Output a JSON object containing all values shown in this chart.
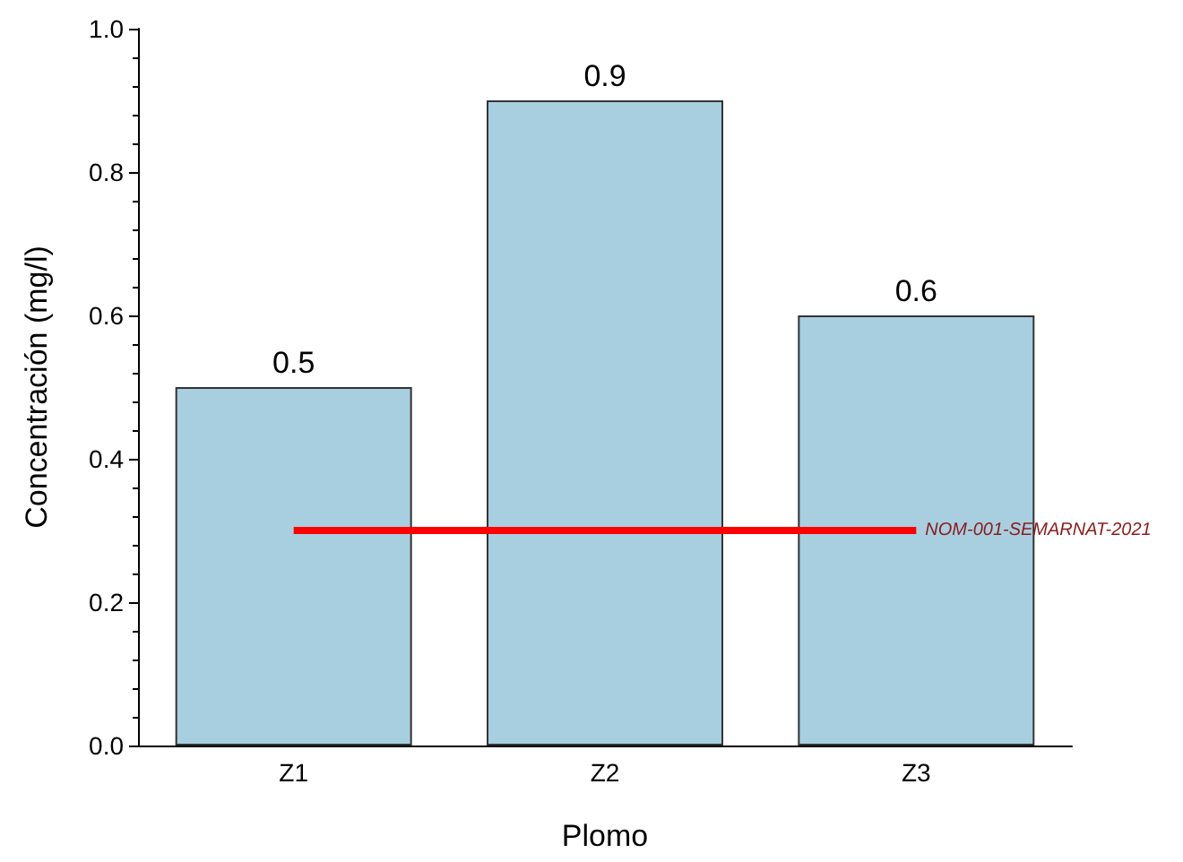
{
  "chart_data": {
    "type": "bar",
    "xlabel": "Plomo",
    "ylabel": "Concentración (mg/l)",
    "categories": [
      "Z1",
      "Z2",
      "Z3"
    ],
    "values": [
      0.5,
      0.9,
      0.6
    ],
    "color": "#a8cfe0",
    "ylim": [
      0,
      1
    ],
    "yticks": [
      {
        "value": 0,
        "label": "0.0"
      },
      0.2,
      0.4,
      0.6,
      0.8,
      {
        "value": 1,
        "label": "1.0"
      }
    ],
    "grid": false,
    "data_labels": true,
    "ref_lines": [
      {
        "axis": "y",
        "value": 0.3,
        "label": "NOM-001-SEMARNAT-2021",
        "color": "#ff0000"
      }
    ]
  }
}
